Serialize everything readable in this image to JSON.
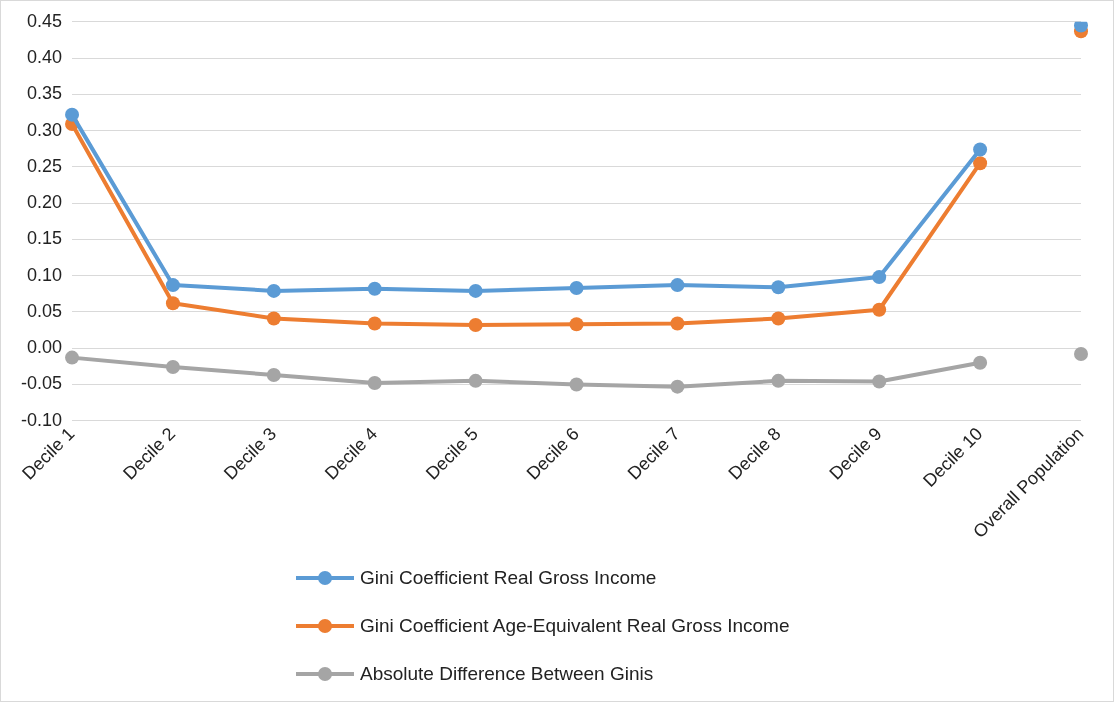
{
  "chart_data": {
    "type": "line",
    "categories": [
      "Decile 1",
      "Decile 2",
      "Decile 3",
      "Decile 4",
      "Decile 5",
      "Decile 6",
      "Decile 7",
      "Decile 8",
      "Decile 9",
      "Decile 10",
      "Overall Population"
    ],
    "series": [
      {
        "name": "Gini Coefficient Real Gross Income",
        "color": "#5b9bd5",
        "values": [
          0.322,
          0.087,
          0.079,
          0.082,
          0.079,
          0.083,
          0.087,
          0.084,
          0.098,
          0.274,
          null
        ]
      },
      {
        "name": "Gini Coefficient Age-Equivalent Real Gross Income",
        "color": "#ed7d31",
        "values": [
          0.309,
          0.062,
          0.041,
          0.034,
          0.032,
          0.033,
          0.034,
          0.041,
          0.053,
          0.255,
          null
        ]
      },
      {
        "name": "Absolute Difference Between Ginis",
        "color": "#a5a5a5",
        "values": [
          -0.013,
          -0.026,
          -0.037,
          -0.048,
          -0.045,
          -0.05,
          -0.053,
          -0.045,
          -0.046,
          -0.02,
          null
        ]
      },
      {
        "type": "scatter",
        "color": "#5b9bd5",
        "values": [
          null,
          null,
          null,
          null,
          null,
          null,
          null,
          null,
          null,
          null,
          0.445
        ]
      },
      {
        "type": "scatter",
        "color": "#ed7d31",
        "values": [
          null,
          null,
          null,
          null,
          null,
          null,
          null,
          null,
          null,
          null,
          0.437
        ]
      },
      {
        "type": "scatter",
        "color": "#a5a5a5",
        "values": [
          null,
          null,
          null,
          null,
          null,
          null,
          null,
          null,
          null,
          null,
          -0.008
        ]
      }
    ],
    "ylim": [
      -0.1,
      0.45
    ],
    "yticks": [
      {
        "value": -0.1,
        "label": "-0.10"
      },
      {
        "value": -0.05,
        "label": "-0.05"
      },
      {
        "value": 0,
        "label": "0.00"
      },
      {
        "value": 0.05,
        "label": "0.05"
      },
      {
        "value": 0.1,
        "label": "0.10"
      },
      {
        "value": 0.15,
        "label": "0.15"
      },
      {
        "value": 0.2,
        "label": "0.20"
      },
      {
        "value": 0.25,
        "label": "0.25"
      },
      {
        "value": 0.3,
        "label": "0.30"
      },
      {
        "value": 0.35,
        "label": "0.35"
      },
      {
        "value": 0.4,
        "label": "0.40"
      },
      {
        "value": 0.45,
        "label": "0.45"
      }
    ],
    "grid": "y",
    "legend": "bottom",
    "marker": "circle",
    "line_style": "solid"
  }
}
